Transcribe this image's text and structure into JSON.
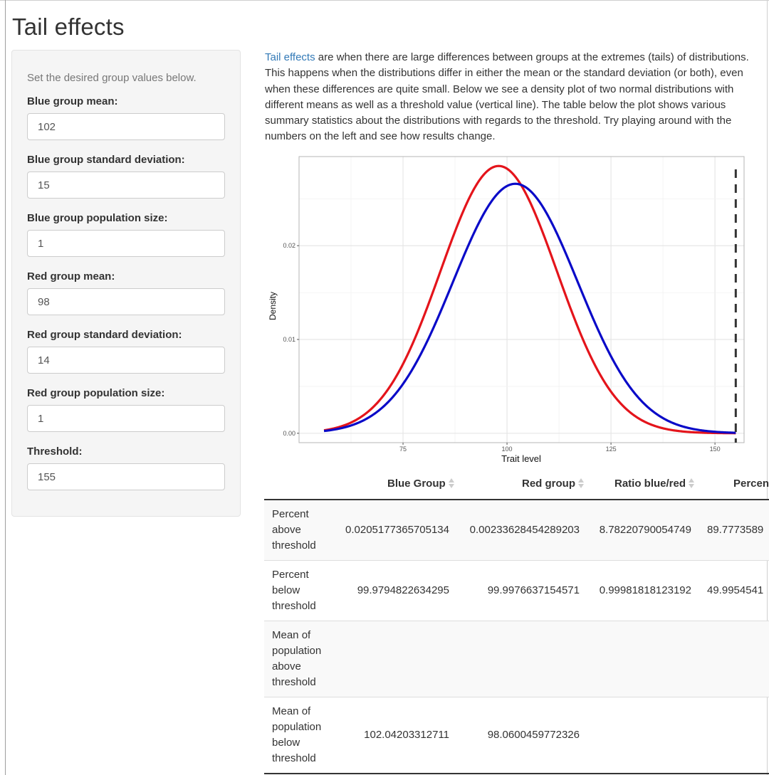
{
  "page": {
    "title": "Tail effects"
  },
  "sidebar": {
    "intro": "Set the desired group values below.",
    "fields": [
      {
        "label": "Blue group mean:",
        "value": "102"
      },
      {
        "label": "Blue group standard deviation:",
        "value": "15"
      },
      {
        "label": "Blue group population size:",
        "value": "1"
      },
      {
        "label": "Red group mean:",
        "value": "98"
      },
      {
        "label": "Red group standard deviation:",
        "value": "14"
      },
      {
        "label": "Red group population size:",
        "value": "1"
      },
      {
        "label": "Threshold:",
        "value": "155"
      }
    ]
  },
  "description": {
    "link_text": "Tail effects",
    "text": " are when there are large differences between groups at the extremes (tails) of distributions. This happens when the distributions differ in either the mean or the standard deviation (or both), even when these differences are quite small. Below we see a density plot of two normal distributions with different means as well as a threshold value (vertical line). The table below the plot shows various summary statistics about the distributions with regards to the threshold. Try playing around with the numbers on the left and see how results change."
  },
  "chart_data": {
    "type": "line",
    "xlabel": "Trait level",
    "ylabel": "Density",
    "xlim": [
      50,
      157
    ],
    "ylim": [
      -0.001,
      0.0295
    ],
    "x_ticks": [
      75,
      100,
      125,
      150
    ],
    "y_ticks": [
      0.0,
      0.01,
      0.02
    ],
    "x_tick_labels": [
      "75",
      "100",
      "125",
      "150"
    ],
    "y_tick_labels": [
      "0.00",
      "0.01",
      "0.02"
    ],
    "x_range": [
      56,
      155
    ],
    "series": [
      {
        "name": "Blue group",
        "color": "#0a0ac8",
        "mean": 102,
        "sd": 15
      },
      {
        "name": "Red group",
        "color": "#e4141b",
        "mean": 98,
        "sd": 14
      }
    ],
    "threshold": 155,
    "threshold_color": "#333333",
    "grid": true
  },
  "table": {
    "columns": [
      "",
      "Blue Group",
      "Red group",
      "Ratio blue/red",
      "Percent blue"
    ],
    "rows": [
      {
        "label": "Percent above threshold",
        "values": [
          "0.0205177365705134",
          "0.00233628454289203",
          "8.78220790054749",
          "89.7773589"
        ]
      },
      {
        "label": "Percent below threshold",
        "values": [
          "99.9794822634295",
          "99.9976637154571",
          "0.99981818123192",
          "49.9954541"
        ]
      },
      {
        "label": "Mean of population above threshold",
        "values": [
          "",
          "",
          "",
          ""
        ]
      },
      {
        "label": "Mean of population below threshold",
        "values": [
          "102.04203312711",
          "98.0600459772326",
          "",
          ""
        ]
      }
    ]
  }
}
